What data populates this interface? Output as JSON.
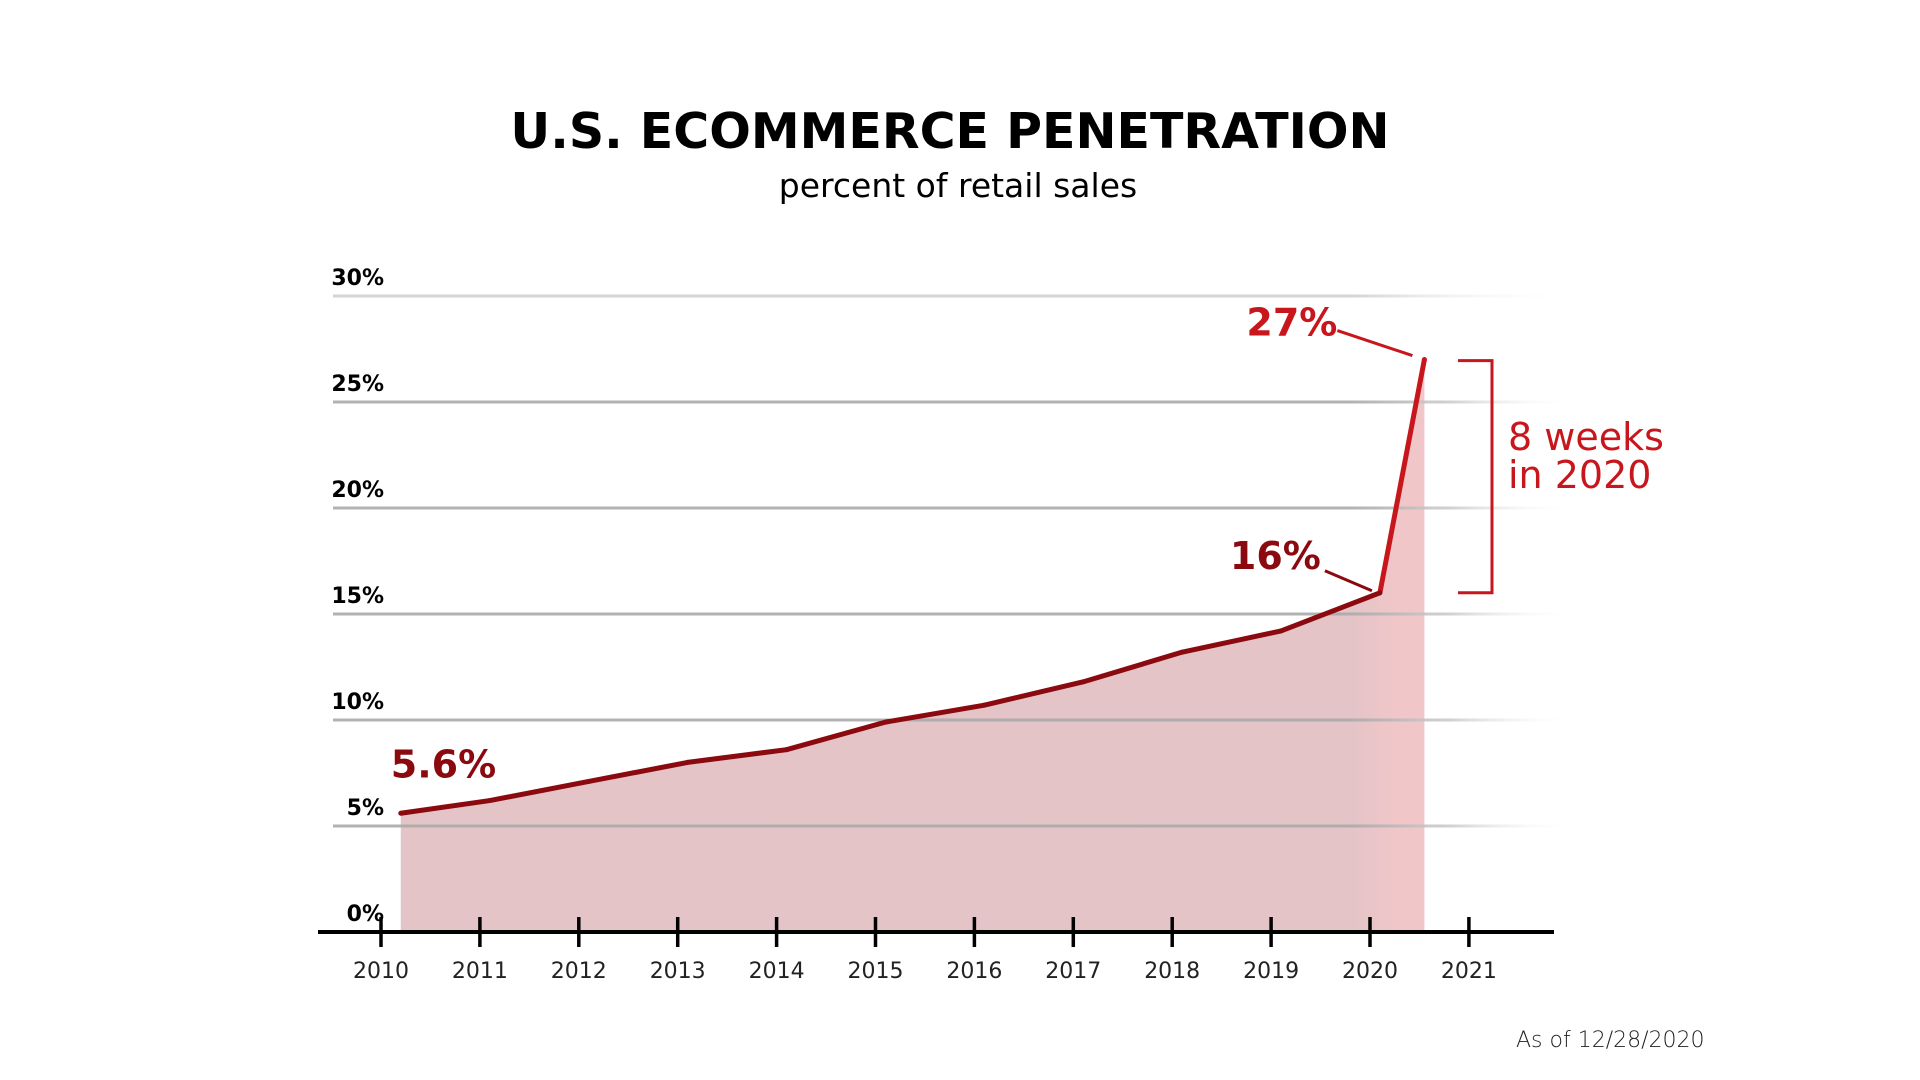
{
  "chart_data": {
    "type": "area",
    "title": "U.S. ECOMMERCE PENETRATION",
    "subtitle": "percent of retail sales",
    "xlabel": "",
    "ylabel": "",
    "x_tick_labels": [
      "2010",
      "2011",
      "2012",
      "2013",
      "2014",
      "2015",
      "2016",
      "2017",
      "2018",
      "2019",
      "2020",
      "2021"
    ],
    "y_tick_labels": [
      "0%",
      "5%",
      "10%",
      "15%",
      "20%",
      "25%",
      "30%"
    ],
    "y_ticks": [
      0,
      5,
      10,
      15,
      20,
      25,
      30
    ],
    "x_ticks": [
      2010,
      2011,
      2012,
      2013,
      2014,
      2015,
      2016,
      2017,
      2018,
      2019,
      2020,
      2021
    ],
    "xlim": [
      2010,
      2021.85
    ],
    "ylim": [
      0,
      30
    ],
    "grid": true,
    "series": [
      {
        "name": "U.S. ecommerce share of retail sales",
        "unit": "%",
        "x": [
          2010.2,
          2011.1,
          2012.1,
          2013.1,
          2014.1,
          2015.1,
          2016.1,
          2017.1,
          2018.1,
          2019.1,
          2020.1,
          2020.55
        ],
        "values": [
          5.6,
          6.2,
          7.1,
          8.0,
          8.6,
          9.9,
          10.7,
          11.8,
          13.2,
          14.2,
          16.0,
          27.0
        ]
      }
    ],
    "annotations": [
      {
        "text": "5.6%",
        "x": 2010.2,
        "y": 5.6,
        "style": "start-value"
      },
      {
        "text": "16%",
        "x": 2020.1,
        "y": 16.0,
        "style": "pre-surge-value"
      },
      {
        "text": "27%",
        "x": 2020.55,
        "y": 27.0,
        "style": "peak-value"
      },
      {
        "text_lines": [
          "8 weeks",
          "in 2020"
        ],
        "range_y": [
          16.0,
          27.0
        ],
        "style": "bracket"
      }
    ],
    "footnote": "As of 12/28/2020"
  },
  "colors": {
    "line_dark": "#8b0a10",
    "line_bright": "#c8161d",
    "fill": "#e4c4c7",
    "fill_recent": "#f0c6c8",
    "grid": "#aaaaaa",
    "axis": "#000000"
  }
}
